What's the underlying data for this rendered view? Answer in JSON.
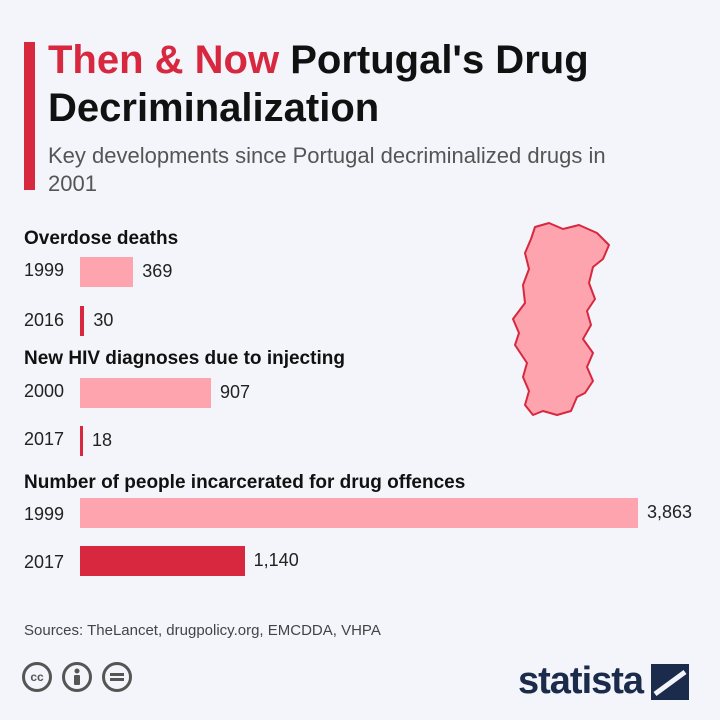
{
  "header": {
    "title_highlight": "Then & Now",
    "title_rest": " Portugal's Drug Decriminalization",
    "subtitle": "Key developments since Portugal decriminalized drugs in 2001"
  },
  "chart_data": {
    "type": "bar",
    "orientation": "horizontal",
    "colors": {
      "then": "#fda4ae",
      "now": "#d8283f"
    },
    "groups": [
      {
        "label": "Overdose deaths",
        "rows": [
          {
            "year": "1999",
            "value": 369,
            "label": "369",
            "period": "then"
          },
          {
            "year": "2016",
            "value": 30,
            "label": "30",
            "period": "now"
          }
        ]
      },
      {
        "label": "New HIV diagnoses due to injecting",
        "rows": [
          {
            "year": "2000",
            "value": 907,
            "label": "907",
            "period": "then"
          },
          {
            "year": "2017",
            "value": 18,
            "label": "18",
            "period": "now"
          }
        ]
      },
      {
        "label": "Number of people incarcerated for drug offences",
        "rows": [
          {
            "year": "1999",
            "value": 3863,
            "label": "3,863",
            "period": "then"
          },
          {
            "year": "2017",
            "value": 1140,
            "label": "1,140",
            "period": "now"
          }
        ]
      }
    ]
  },
  "footer": {
    "sources": "Sources: TheLancet, drugpolicy.org, EMCDDA, VHPA",
    "brand": "statista",
    "icons": [
      "creative-commons-icon",
      "attribution-icon",
      "no-derivatives-icon"
    ]
  }
}
